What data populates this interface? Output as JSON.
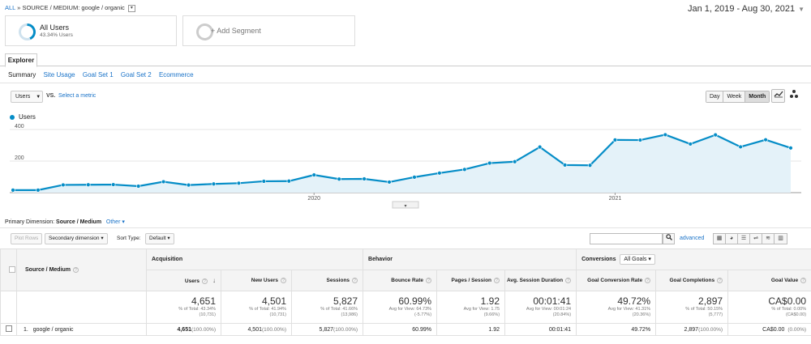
{
  "breadcrumb": {
    "all": "ALL",
    "sep": "»",
    "path": "SOURCE / MEDIUM: google / organic"
  },
  "daterange": "Jan 1, 2019 - Aug 30, 2021",
  "segments": {
    "s1": {
      "name": "All Users",
      "pct": "43.34% Users",
      "share": 0.4334
    },
    "s2": {
      "label": "+ Add Segment"
    }
  },
  "tabs": {
    "explorer": "Explorer"
  },
  "subtabs": [
    "Summary",
    "Site Usage",
    "Goal Set 1",
    "Goal Set 2",
    "Ecommerce"
  ],
  "chart_controls": {
    "metric": "Users",
    "vs": "VS.",
    "select_metric": "Select a metric",
    "periods": [
      "Day",
      "Week",
      "Month"
    ],
    "active_period": "Month"
  },
  "chart_data": {
    "type": "area",
    "series": [
      {
        "name": "Users",
        "values": [
          16,
          16,
          49,
          50,
          51,
          41,
          69,
          48,
          55,
          60,
          72,
          73,
          112,
          86,
          87,
          67,
          98,
          124,
          147,
          187,
          196,
          289,
          175,
          173,
          334,
          333,
          367,
          308,
          366,
          290,
          335,
          283
        ]
      }
    ],
    "x_ticks": [
      "2020",
      "2021"
    ],
    "x_tick_index": [
      12,
      24
    ],
    "y_ticks": [
      200,
      400
    ],
    "ylim": [
      0,
      400
    ],
    "color": "#058dc7",
    "fill": "#e4f2f9"
  },
  "primary_dimension": {
    "label": "Primary Dimension:",
    "value": "Source / Medium",
    "other": "Other"
  },
  "toolbar": {
    "plot_rows": "Plot Rows",
    "secondary_dimension": "Secondary dimension",
    "sort_type_label": "Sort Type:",
    "sort_type": "Default",
    "advanced": "advanced"
  },
  "table": {
    "dim_header": "Source / Medium",
    "groups": {
      "acquisition": "Acquisition",
      "behavior": "Behavior",
      "conversions": "Conversions",
      "goal_select": "All Goals"
    },
    "columns": [
      "Users",
      "New Users",
      "Sessions",
      "Bounce Rate",
      "Pages / Session",
      "Avg. Session Duration",
      "Goal Conversion Rate",
      "Goal Completions",
      "Goal Value"
    ],
    "totals": [
      {
        "big": "4,651",
        "l1": "% of Total: 43.34%",
        "l2": "(10,731)"
      },
      {
        "big": "4,501",
        "l1": "% of Total: 41.94%",
        "l2": "(10,731)"
      },
      {
        "big": "5,827",
        "l1": "% of Total: 41.66%",
        "l2": "(13,986)"
      },
      {
        "big": "60.99%",
        "l1": "Avg for View: 64.73%",
        "l2": "(-5.77%)"
      },
      {
        "big": "1.92",
        "l1": "Avg for View: 1.75",
        "l2": "(9.66%)"
      },
      {
        "big": "00:01:41",
        "l1": "Avg for View: 00:01:24",
        "l2": "(20.84%)"
      },
      {
        "big": "49.72%",
        "l1": "Avg for View: 41.31%",
        "l2": "(20.36%)"
      },
      {
        "big": "2,897",
        "l1": "% of Total: 50.15%",
        "l2": "(5,777)"
      },
      {
        "big": "CA$0.00",
        "l1": "% of Total: 0.00%",
        "l2": "(CA$0.00)"
      }
    ],
    "rows": [
      {
        "index": "1.",
        "dim": "google / organic",
        "cells": [
          {
            "v": "4,651",
            "p": "(100.00%)"
          },
          {
            "v": "4,501",
            "p": "(100.00%)"
          },
          {
            "v": "5,827",
            "p": "(100.00%)"
          },
          {
            "v": "60.99%",
            "p": ""
          },
          {
            "v": "1.92",
            "p": ""
          },
          {
            "v": "00:01:41",
            "p": ""
          },
          {
            "v": "49.72%",
            "p": ""
          },
          {
            "v": "2,897",
            "p": "(100.00%)"
          },
          {
            "v": "CA$0.00",
            "p": "(0.00%)"
          }
        ]
      }
    ]
  }
}
